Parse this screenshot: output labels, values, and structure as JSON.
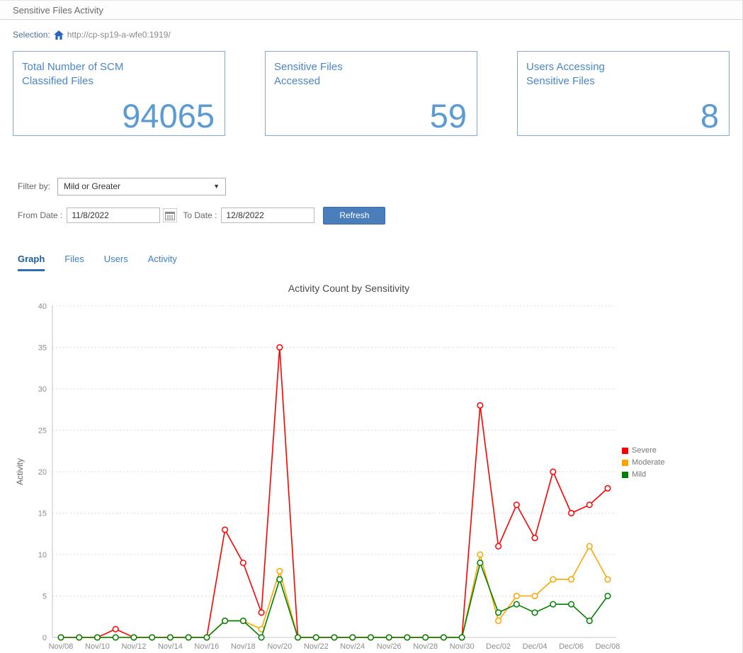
{
  "header": {
    "title": "Sensitive Files Activity",
    "selection_label": "Selection:",
    "selection_url": "http://cp-sp19-a-wfe0:1919/"
  },
  "cards": [
    {
      "label": "Total Number of SCM Classified Files",
      "value": "94065"
    },
    {
      "label": "Sensitive Files Accessed",
      "value": "59"
    },
    {
      "label": "Users Accessing Sensitive Files",
      "value": "8"
    }
  ],
  "filters": {
    "filter_by_label": "Filter by:",
    "filter_value": "Mild or Greater",
    "from_date_label": "From Date :",
    "from_date_value": "11/8/2022",
    "to_date_label": "To Date :",
    "to_date_value": "12/8/2022",
    "refresh_label": "Refresh"
  },
  "tabs": [
    {
      "label": "Graph",
      "active": true
    },
    {
      "label": "Files",
      "active": false
    },
    {
      "label": "Users",
      "active": false
    },
    {
      "label": "Activity",
      "active": false
    }
  ],
  "chart_data": {
    "type": "line",
    "title": "Activity Count by Sensitivity",
    "ylabel": "Activity",
    "ylim": [
      0,
      40
    ],
    "ytick_step": 5,
    "grid": true,
    "legend_position": "right",
    "x": [
      "Nov/08",
      "Nov/09",
      "Nov/10",
      "Nov/11",
      "Nov/12",
      "Nov/13",
      "Nov/14",
      "Nov/15",
      "Nov/16",
      "Nov/17",
      "Nov/18",
      "Nov/19",
      "Nov/20",
      "Nov/21",
      "Nov/22",
      "Nov/23",
      "Nov/24",
      "Nov/25",
      "Nov/26",
      "Nov/27",
      "Nov/28",
      "Nov/29",
      "Nov/30",
      "Dec/01",
      "Dec/02",
      "Dec/03",
      "Dec/04",
      "Dec/05",
      "Dec/06",
      "Dec/07",
      "Dec/08"
    ],
    "x_labels": [
      "Nov/08",
      "Nov/10",
      "Nov/12",
      "Nov/14",
      "Nov/16",
      "Nov/18",
      "Nov/20",
      "Nov/22",
      "Nov/24",
      "Nov/26",
      "Nov/28",
      "Nov/30",
      "Dec/02",
      "Dec/04",
      "Dec/06",
      "Dec/08"
    ],
    "series": [
      {
        "name": "Severe",
        "color": "#ff0000",
        "values": [
          0,
          0,
          0,
          1,
          0,
          0,
          0,
          0,
          0,
          13,
          9,
          3,
          35,
          0,
          0,
          0,
          0,
          0,
          0,
          0,
          0,
          0,
          0,
          28,
          11,
          16,
          12,
          20,
          15,
          16,
          18
        ]
      },
      {
        "name": "Moderate",
        "color": "#ffa500",
        "values": [
          0,
          0,
          0,
          0,
          0,
          0,
          0,
          0,
          0,
          2,
          2,
          1,
          8,
          0,
          0,
          0,
          0,
          0,
          0,
          0,
          0,
          0,
          0,
          10,
          2,
          5,
          5,
          7,
          7,
          11,
          7
        ]
      },
      {
        "name": "Mild",
        "color": "#008000",
        "values": [
          0,
          0,
          0,
          0,
          0,
          0,
          0,
          0,
          0,
          2,
          2,
          0,
          7,
          0,
          0,
          0,
          0,
          0,
          0,
          0,
          0,
          0,
          0,
          9,
          3,
          4,
          3,
          4,
          4,
          2,
          5
        ]
      }
    ]
  }
}
